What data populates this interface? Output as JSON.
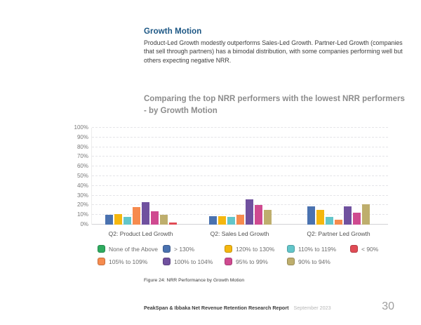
{
  "page": {
    "heading": "Growth Motion",
    "heading_color": "#1b5684",
    "body": "Product-Led Growth modestly outperforms Sales-Led Growth. Partner-Led Growth (companies that sell through partners) has a bimodal distribution, with some companies performing well but others expecting negative NRR.",
    "caption": "Figure 24: NRR Performance by Growth Motion",
    "footer": {
      "report": "PeakSpan & Ibbaka Net Revenue Retention Research Report",
      "date": "September 2023",
      "page_number": "30"
    }
  },
  "chart_data": {
    "type": "bar",
    "title": "Comparing the top NRR performers with the lowest NRR performers - by Growth Motion",
    "title_color": "#8c8c8c",
    "categories": [
      "Q2: Product Led Growth",
      "Q2: Sales Led Growth",
      "Q2: Partner Led Growth"
    ],
    "series": [
      {
        "name": "None of the Above",
        "color": "#2eab5f",
        "values": [
          0,
          0,
          0
        ]
      },
      {
        "name": "> 130%",
        "color": "#4a72b0",
        "values": [
          10,
          9,
          19
        ]
      },
      {
        "name": "120% to 130%",
        "color": "#f5b70f",
        "values": [
          11,
          9,
          15
        ]
      },
      {
        "name": "110% to 119%",
        "color": "#63c6ca",
        "values": [
          8,
          8,
          8
        ]
      },
      {
        "name": "105% to 109%",
        "color": "#f68b4e",
        "values": [
          18,
          10,
          5
        ]
      },
      {
        "name": "100% to 104%",
        "color": "#70519f",
        "values": [
          23,
          26,
          19
        ]
      },
      {
        "name": "95% to 99%",
        "color": "#cf4a90",
        "values": [
          14,
          20,
          12
        ]
      },
      {
        "name": "90% to 94%",
        "color": "#beae6d",
        "values": [
          10,
          15,
          21
        ]
      },
      {
        "name": "< 90%",
        "color": "#e04b55",
        "values": [
          2,
          0,
          0
        ]
      }
    ],
    "bar_order": [
      1,
      2,
      3,
      4,
      5,
      6,
      7,
      8,
      0
    ],
    "legend_order": [
      0,
      1,
      2,
      3,
      8,
      4,
      5,
      6,
      7
    ],
    "ylim": [
      0,
      100
    ],
    "ytick_step": 10,
    "yticks": [
      "0%",
      "10%",
      "20%",
      "30%",
      "40%",
      "50%",
      "60%",
      "70%",
      "80%",
      "90%",
      "100%"
    ],
    "grid": "horizontal-dashed",
    "legend_position": "bottom"
  }
}
